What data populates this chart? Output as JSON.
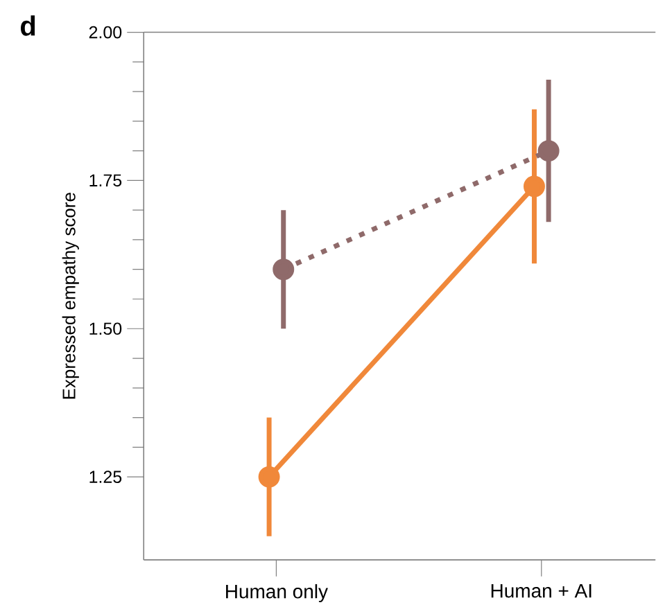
{
  "chart_data": {
    "type": "line",
    "ylabel": "Expressed empathy score",
    "annotations": [
      "d"
    ],
    "categories": [
      "Human only",
      "Human + AI"
    ],
    "series": [
      {
        "color": "#f0883a",
        "values": [
          1.25,
          1.74
        ],
        "errors": [
          [
            1.15,
            1.35
          ],
          [
            1.61,
            1.87
          ]
        ],
        "line_style": "solid"
      },
      {
        "color": "#8f6a6a",
        "values": [
          1.6,
          1.8
        ],
        "errors": [
          [
            1.5,
            1.7
          ],
          [
            1.68,
            1.92
          ]
        ],
        "line_style": "dotted"
      }
    ],
    "ylim": [
      1.11,
      2.0
    ],
    "yticks": [
      1.25,
      {
        "value": 1.5,
        "label": "1.50"
      },
      1.75,
      {
        "value": 2.0,
        "label": "2.00"
      }
    ],
    "marker": "circle"
  }
}
